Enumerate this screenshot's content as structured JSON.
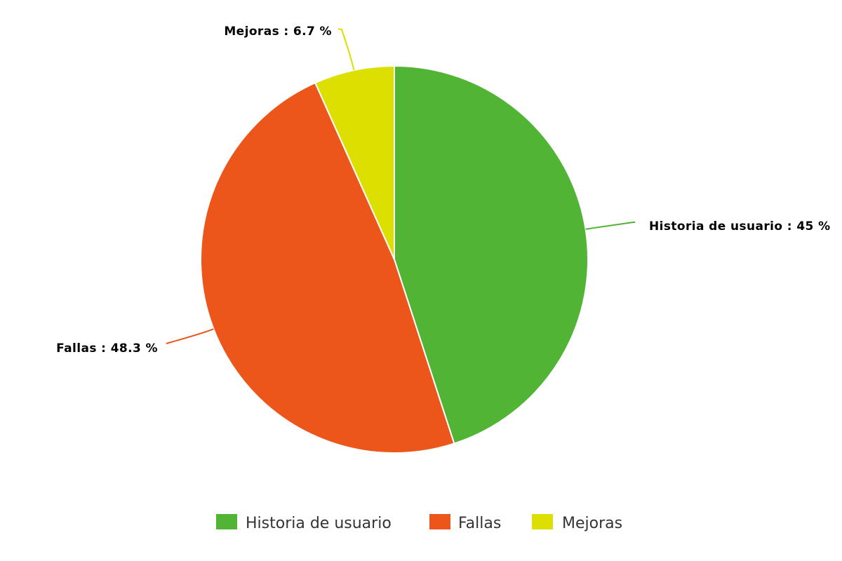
{
  "chart_data": {
    "type": "pie",
    "title": "",
    "legend_position": "bottom",
    "slices": [
      {
        "name": "Historia de usuario",
        "value": 45,
        "label": "Historia de usuario : 45 %",
        "color": "#52B435"
      },
      {
        "name": "Fallas",
        "value": 48.3,
        "label": "Fallas : 48.3 %",
        "color": "#EC561B"
      },
      {
        "name": "Mejoras",
        "value": 6.7,
        "label": "Mejoras : 6.7 %",
        "color": "#DDDF00"
      }
    ]
  }
}
